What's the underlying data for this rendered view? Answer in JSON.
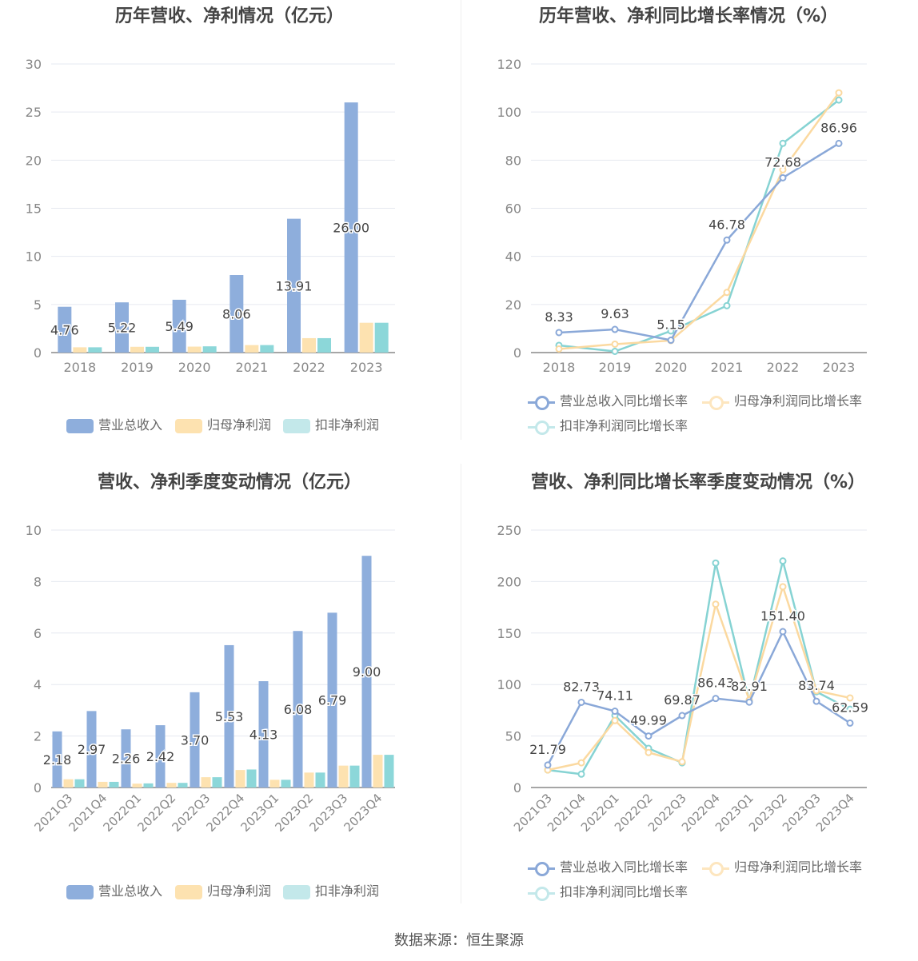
{
  "colors": {
    "revenue": "#8eaedc",
    "parent": "#fde2b0",
    "deducted": "#8cd7d9",
    "revenue_line": "#8aa8d8",
    "parent_line": "#fbd9a0",
    "deducted_line": "#86d3d3"
  },
  "source": "数据来源：恒生聚源",
  "chart_data": [
    {
      "id": "annual_amount",
      "type": "bar",
      "title": "历年营收、净利情况（亿元）",
      "categories": [
        "2018",
        "2019",
        "2020",
        "2021",
        "2022",
        "2023"
      ],
      "ylim": [
        0,
        30
      ],
      "yticks": [
        0,
        5,
        10,
        15,
        20,
        25,
        30
      ],
      "grid": true,
      "legend": "bottom",
      "series": [
        {
          "name": "营业总收入",
          "values": [
            4.76,
            5.22,
            5.49,
            8.06,
            13.91,
            26.0
          ],
          "labels": [
            "4.76",
            "5.22",
            "5.49",
            "8.06",
            "13.91",
            "26.00"
          ]
        },
        {
          "name": "归母净利润",
          "values": [
            0.55,
            0.6,
            0.62,
            0.78,
            1.5,
            3.1
          ]
        },
        {
          "name": "扣非净利润",
          "values": [
            0.55,
            0.6,
            0.65,
            0.78,
            1.5,
            3.1
          ]
        }
      ]
    },
    {
      "id": "annual_growth",
      "type": "line",
      "title": "历年营收、净利同比增长率情况（%）",
      "categories": [
        "2018",
        "2019",
        "2020",
        "2021",
        "2022",
        "2023"
      ],
      "ylim": [
        0,
        120
      ],
      "yticks": [
        0,
        20,
        40,
        60,
        80,
        100,
        120
      ],
      "grid": true,
      "legend": "bottom",
      "series": [
        {
          "name": "营业总收入同比增长率",
          "values": [
            8.33,
            9.63,
            5.15,
            46.78,
            72.68,
            86.96
          ],
          "labels": [
            "8.33",
            "9.63",
            "5.15",
            "46.78",
            "72.68",
            "86.96"
          ]
        },
        {
          "name": "归母净利润同比增长率",
          "values": [
            1.5,
            3.5,
            5.0,
            25.0,
            76.0,
            108.0
          ]
        },
        {
          "name": "扣非净利润同比增长率",
          "values": [
            3.0,
            0.5,
            9.0,
            19.5,
            87.0,
            105.0
          ]
        }
      ]
    },
    {
      "id": "quarterly_amount",
      "type": "bar",
      "title": "营收、净利季度变动情况（亿元）",
      "categories": [
        "2021Q3",
        "2021Q4",
        "2022Q1",
        "2022Q2",
        "2022Q3",
        "2022Q4",
        "2023Q1",
        "2023Q2",
        "2023Q3",
        "2023Q4"
      ],
      "ylim": [
        0,
        10
      ],
      "yticks": [
        0,
        2,
        4,
        6,
        8,
        10
      ],
      "grid": true,
      "legend": "bottom",
      "series": [
        {
          "name": "营业总收入",
          "values": [
            2.18,
            2.97,
            2.26,
            2.42,
            3.7,
            5.53,
            4.13,
            6.08,
            6.79,
            9.0
          ],
          "labels": [
            "2.18",
            "2.97",
            "2.26",
            "2.42",
            "3.70",
            "5.53",
            "4.13",
            "6.08",
            "6.79",
            "9.00"
          ]
        },
        {
          "name": "归母净利润",
          "values": [
            0.32,
            0.22,
            0.15,
            0.18,
            0.4,
            0.68,
            0.3,
            0.58,
            0.85,
            1.27
          ]
        },
        {
          "name": "扣非净利润",
          "values": [
            0.32,
            0.22,
            0.16,
            0.18,
            0.4,
            0.7,
            0.3,
            0.58,
            0.85,
            1.27
          ]
        }
      ]
    },
    {
      "id": "quarterly_growth",
      "type": "line",
      "title": "营收、净利同比增长率季度变动情况（%）",
      "categories": [
        "2021Q3",
        "2021Q4",
        "2022Q1",
        "2022Q2",
        "2022Q3",
        "2022Q4",
        "2023Q1",
        "2023Q2",
        "2023Q3",
        "2023Q4"
      ],
      "ylim": [
        0,
        250
      ],
      "yticks": [
        0,
        50,
        100,
        150,
        200,
        250
      ],
      "grid": true,
      "legend": "bottom",
      "series": [
        {
          "name": "营业总收入同比增长率",
          "values": [
            21.79,
            82.73,
            74.11,
            49.99,
            69.87,
            86.43,
            82.91,
            151.4,
            83.74,
            62.59
          ],
          "labels": [
            "21.79",
            "82.73",
            "74.11",
            "49.99",
            "69.87",
            "86.43",
            "82.91",
            "151.40",
            "83.74",
            "62.59"
          ]
        },
        {
          "name": "归母净利润同比增长率",
          "values": [
            17.0,
            24.0,
            65.0,
            34.0,
            25.0,
            178.0,
            85.0,
            195.0,
            94.0,
            87.0
          ]
        },
        {
          "name": "扣非净利润同比增长率",
          "values": [
            17.0,
            13.0,
            70.0,
            38.0,
            24.0,
            218.0,
            84.0,
            220.0,
            93.0,
            76.0
          ]
        }
      ]
    }
  ]
}
